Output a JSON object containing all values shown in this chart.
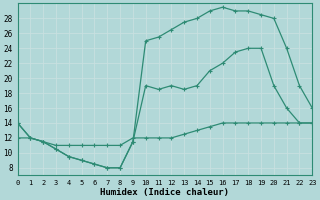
{
  "title": "",
  "xlabel": "Humidex (Indice chaleur)",
  "ylabel": "",
  "background_color": "#b2d8d8",
  "line_color": "#2e8b74",
  "grid_color": "#d0eaea",
  "xlim": [
    0,
    23
  ],
  "ylim": [
    7,
    30
  ],
  "xticks": [
    0,
    1,
    2,
    3,
    4,
    5,
    6,
    7,
    8,
    9,
    10,
    11,
    12,
    13,
    14,
    15,
    16,
    17,
    18,
    19,
    20,
    21,
    22,
    23
  ],
  "yticks": [
    8,
    10,
    12,
    14,
    16,
    18,
    20,
    22,
    24,
    26,
    28
  ],
  "line1_x": [
    0,
    1,
    2,
    3,
    4,
    5,
    6,
    7,
    8,
    9,
    10,
    11,
    12,
    13,
    14,
    15,
    16,
    17,
    18,
    19,
    20,
    21,
    22,
    23
  ],
  "line1_y": [
    14,
    12,
    11.5,
    10.5,
    9.5,
    9,
    8.5,
    8,
    8,
    11.5,
    25,
    25.5,
    26.5,
    27.5,
    28,
    29,
    29.5,
    29,
    29,
    28.5,
    28,
    24,
    19,
    16
  ],
  "line2_x": [
    0,
    1,
    2,
    3,
    4,
    5,
    6,
    7,
    8,
    9,
    10,
    11,
    12,
    13,
    14,
    15,
    16,
    17,
    18,
    19,
    20,
    21,
    22,
    23
  ],
  "line2_y": [
    14,
    12,
    11.5,
    10.5,
    9.5,
    9,
    8.5,
    8,
    8,
    11.5,
    19,
    18.5,
    19,
    18.5,
    19,
    21,
    22,
    23.5,
    24,
    24,
    19,
    16,
    14,
    14
  ],
  "line3_x": [
    0,
    1,
    2,
    3,
    4,
    5,
    6,
    7,
    8,
    9,
    10,
    11,
    12,
    13,
    14,
    15,
    16,
    17,
    18,
    19,
    20,
    21,
    22,
    23
  ],
  "line3_y": [
    12,
    12,
    11.5,
    11,
    11,
    11,
    11,
    11,
    11,
    12,
    12,
    12,
    12,
    12.5,
    13,
    13.5,
    14,
    14,
    14,
    14,
    14,
    14,
    14,
    14
  ]
}
